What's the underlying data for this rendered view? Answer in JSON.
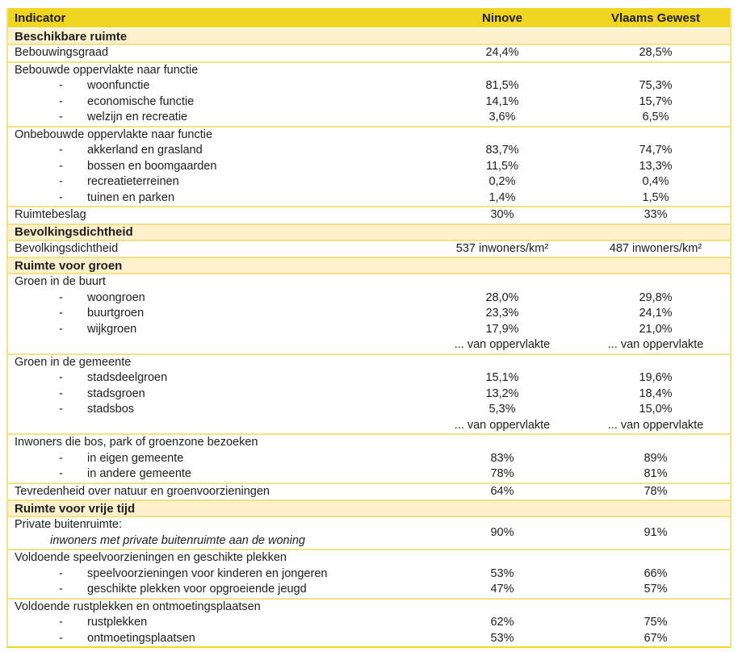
{
  "colors": {
    "header_bg": "#f0d520",
    "section_bg": "#fcf0cd",
    "row_border": "#f3e282",
    "bottom_border": "#f0d520",
    "text": "#1d1d1b"
  },
  "markers": {
    "dash": "-"
  },
  "table": {
    "columns": [
      "Indicator",
      "Ninove",
      "Vlaams Gewest"
    ],
    "sections": [
      {
        "title": "Beschikbare ruimte",
        "blocks": [
          {
            "rows": [
              {
                "type": "plain",
                "label": "Bebouwingsgraad",
                "ninove": "24,4%",
                "vlaams": "28,5%"
              }
            ]
          },
          {
            "rows": [
              {
                "type": "group",
                "label": "Bebouwde oppervlakte naar functie",
                "ninove": "",
                "vlaams": ""
              },
              {
                "type": "sub",
                "label": "woonfunctie",
                "ninove": "81,5%",
                "vlaams": "75,3%"
              },
              {
                "type": "sub",
                "label": "economische functie",
                "ninove": "14,1%",
                "vlaams": "15,7%"
              },
              {
                "type": "sub",
                "label": "welzijn en recreatie",
                "ninove": "3,6%",
                "vlaams": "6,5%"
              }
            ]
          },
          {
            "rows": [
              {
                "type": "group",
                "label": "Onbebouwde oppervlakte naar functie",
                "ninove": "",
                "vlaams": ""
              },
              {
                "type": "sub",
                "label": "akkerland en grasland",
                "ninove": "83,7%",
                "vlaams": "74,7%"
              },
              {
                "type": "sub",
                "label": "bossen en boomgaarden",
                "ninove": "11,5%",
                "vlaams": "13,3%"
              },
              {
                "type": "sub",
                "label": "recreatieterreinen",
                "ninove": "0,2%",
                "vlaams": "0,4%"
              },
              {
                "type": "sub",
                "label": "tuinen en parken",
                "ninove": "1,4%",
                "vlaams": "1,5%"
              }
            ]
          },
          {
            "rows": [
              {
                "type": "plain",
                "label": "Ruimtebeslag",
                "ninove": "30%",
                "vlaams": "33%"
              }
            ]
          }
        ]
      },
      {
        "title": "Bevolkingsdichtheid",
        "blocks": [
          {
            "rows": [
              {
                "type": "plain",
                "label": "Bevolkingsdichtheid",
                "ninove": "537 inwoners/km²",
                "vlaams": "487 inwoners/km²"
              }
            ]
          }
        ]
      },
      {
        "title": "Ruimte voor groen",
        "blocks": [
          {
            "rows": [
              {
                "type": "group",
                "label": "Groen in de buurt",
                "ninove": "",
                "vlaams": ""
              },
              {
                "type": "sub",
                "label": "woongroen",
                "ninove": "28,0%",
                "vlaams": "29,8%"
              },
              {
                "type": "sub",
                "label": "buurtgroen",
                "ninove": "23,3%",
                "vlaams": "24,1%"
              },
              {
                "type": "sub",
                "label": "wijkgroen",
                "ninove": "17,9%",
                "vlaams": "21,0%"
              },
              {
                "type": "note",
                "label": "",
                "ninove": "... van oppervlakte",
                "vlaams": "... van oppervlakte"
              }
            ]
          },
          {
            "rows": [
              {
                "type": "group",
                "label": "Groen in de gemeente",
                "ninove": "",
                "vlaams": ""
              },
              {
                "type": "sub",
                "label": "stadsdeelgroen",
                "ninove": "15,1%",
                "vlaams": "19,6%"
              },
              {
                "type": "sub",
                "label": "stadsgroen",
                "ninove": "13,2%",
                "vlaams": "18,4%"
              },
              {
                "type": "sub",
                "label": "stadsbos",
                "ninove": "5,3%",
                "vlaams": "15,0%"
              },
              {
                "type": "note",
                "label": "",
                "ninove": "... van oppervlakte",
                "vlaams": "... van oppervlakte"
              }
            ]
          },
          {
            "rows": [
              {
                "type": "group",
                "label": "Inwoners die bos, park of groenzone bezoeken",
                "ninove": "",
                "vlaams": ""
              },
              {
                "type": "sub",
                "label": "in eigen gemeente",
                "ninove": "83%",
                "vlaams": "89%"
              },
              {
                "type": "sub",
                "label": "in andere gemeente",
                "ninove": "78%",
                "vlaams": "81%"
              }
            ]
          },
          {
            "rows": [
              {
                "type": "plain",
                "label": "Tevredenheid over natuur en groenvoorzieningen",
                "ninove": "64%",
                "vlaams": "78%"
              }
            ]
          }
        ]
      },
      {
        "title": "Ruimte voor vrije tijd",
        "blocks": [
          {
            "rows": [
              {
                "type": "twoline",
                "label": "Private buitenruimte:",
                "label2": "inwoners met private buitenruimte aan de woning",
                "ninove": "90%",
                "vlaams": "91%"
              }
            ]
          },
          {
            "rows": [
              {
                "type": "group",
                "label": "Voldoende speelvoorzieningen en geschikte plekken",
                "ninove": "",
                "vlaams": ""
              },
              {
                "type": "sub",
                "label": "speelvoorzieningen voor kinderen en jongeren",
                "ninove": "53%",
                "vlaams": "66%"
              },
              {
                "type": "sub",
                "label": "geschikte plekken voor opgroeiende jeugd",
                "ninove": "47%",
                "vlaams": "57%"
              }
            ]
          },
          {
            "rows": [
              {
                "type": "group",
                "label": "Voldoende rustplekken en ontmoetingsplaatsen",
                "ninove": "",
                "vlaams": ""
              },
              {
                "type": "sub",
                "label": "rustplekken",
                "ninove": "62%",
                "vlaams": "75%"
              },
              {
                "type": "sub",
                "label": "ontmoetingsplaatsen",
                "ninove": "53%",
                "vlaams": "67%"
              }
            ]
          }
        ]
      }
    ]
  }
}
